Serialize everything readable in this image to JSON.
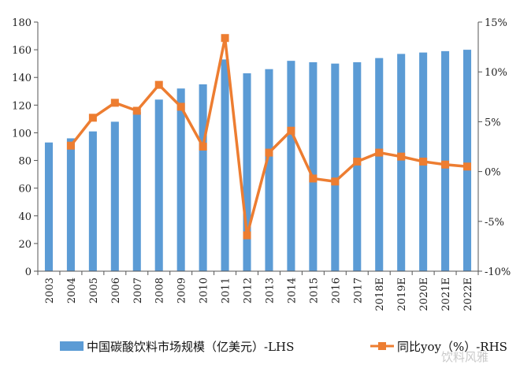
{
  "chart_data": {
    "type": "bar+line",
    "categories": [
      "2003",
      "2004",
      "2005",
      "2006",
      "2007",
      "2008",
      "2009",
      "2010",
      "2011",
      "2012",
      "2013",
      "2014",
      "2015",
      "2016",
      "2017",
      "2018E",
      "2019E",
      "2020E",
      "2021E",
      "2022E"
    ],
    "series": [
      {
        "name": "中国碳酸饮料市场规模（亿美元）-LHS",
        "type": "bar",
        "axis": "left",
        "color": "#5B9BD5",
        "values": [
          93,
          96,
          101,
          108,
          115,
          124,
          132,
          135,
          153,
          143,
          146,
          152,
          151,
          150,
          151,
          154,
          157,
          158,
          159,
          160
        ]
      },
      {
        "name": "同比yoy（%）-RHS",
        "type": "line",
        "axis": "right",
        "color": "#ED7D31",
        "values": [
          null,
          2.6,
          5.4,
          6.9,
          6.1,
          8.7,
          6.5,
          2.5,
          13.4,
          -6.4,
          1.9,
          4.1,
          -0.7,
          -1.0,
          1.0,
          1.9,
          1.5,
          1.0,
          0.7,
          0.5
        ]
      }
    ],
    "y_left": {
      "min": 0,
      "max": 180,
      "step": 20,
      "ticks": [
        "0",
        "20",
        "40",
        "60",
        "80",
        "100",
        "120",
        "140",
        "160",
        "180"
      ]
    },
    "y_right": {
      "min": -10,
      "max": 15,
      "step": 5,
      "ticks": [
        "-10%",
        "-5%",
        "0%",
        "5%",
        "10%",
        "15%"
      ]
    },
    "grid": false,
    "legend": "bottom",
    "legend_labels": [
      "中国碳酸饮料市场规模（亿美元）-LHS",
      "同比yoy（%）-RHS"
    ],
    "watermark": "饮料风雅"
  }
}
